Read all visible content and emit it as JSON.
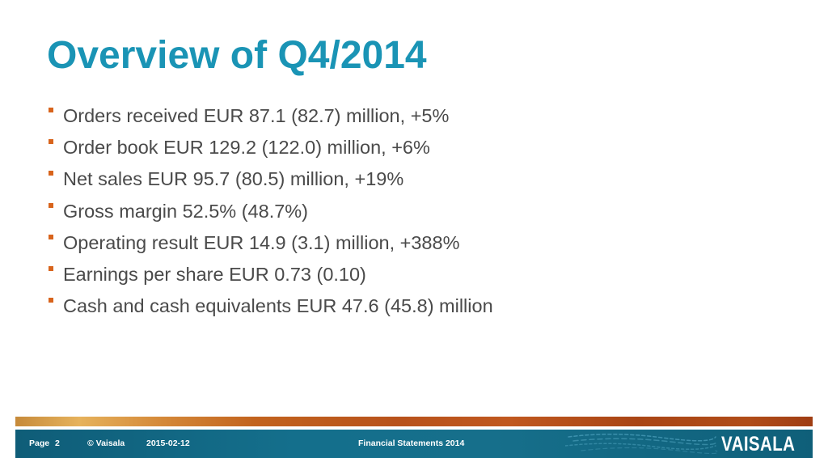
{
  "slide": {
    "title": "Overview of Q4/2014",
    "bullets": [
      "Orders received EUR 87.1 (82.7) million, +5%",
      "Order book EUR 129.2 (122.0) million, +6%",
      "Net sales EUR 95.7 (80.5) million, +19%",
      "Gross margin 52.5% (48.7%)",
      "Operating result EUR 14.9 (3.1) million, +388%",
      "Earnings per share EUR 0.73 (0.10)",
      "Cash and cash equivalents EUR 47.6 (45.8) million"
    ]
  },
  "footer": {
    "page_label": "Page",
    "page_number": "2",
    "copyright": "© Vaisala",
    "date": "2015-02-12",
    "document_title": "Financial Statements 2014",
    "logo_text": "VAISALA"
  },
  "colors": {
    "title": "#1a94b5",
    "bullet_marker": "#d8641c",
    "body_text": "#4a4a4a",
    "footer_bar": "#146f8c",
    "accent_stripe": "#c2631e"
  },
  "icons": {
    "bullet": "square-bullet-icon",
    "swoosh": "decorative-swoosh-icon",
    "logo": "vaisala-logo"
  }
}
